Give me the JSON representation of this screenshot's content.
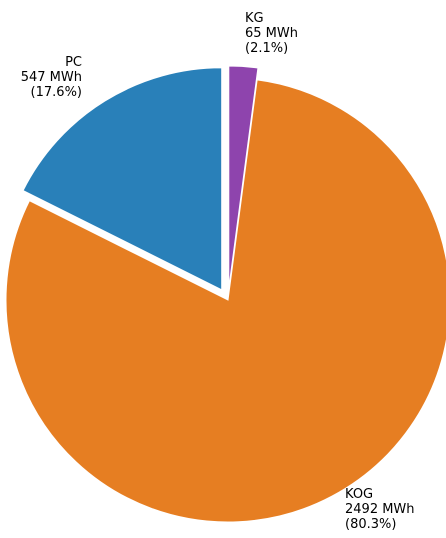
{
  "chart_data": {
    "type": "pie",
    "title": "",
    "slices": [
      {
        "label": "KG",
        "value": 65,
        "value_text": "65 MWh",
        "percent": 2.1,
        "percent_text": "(2.1%)",
        "color": "#8E44AD",
        "exploded": true
      },
      {
        "label": "KOG",
        "value": 2492,
        "value_text": "2492 MWh",
        "percent": 80.3,
        "percent_text": "(80.3%)",
        "color": "#E67E22",
        "exploded": false
      },
      {
        "label": "PC",
        "value": 547,
        "value_text": "547 MWh",
        "percent": 17.6,
        "percent_text": "(17.6%)",
        "color": "#2980B9",
        "exploded": true
      }
    ],
    "start_angle": "top",
    "direction": "clockwise",
    "unit": "MWh"
  }
}
